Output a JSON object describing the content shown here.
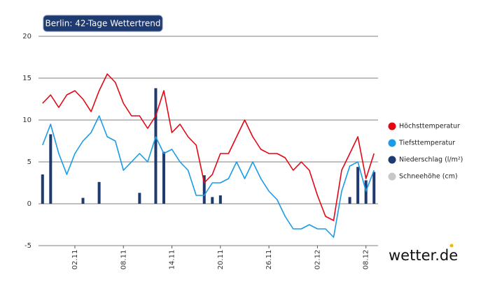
{
  "chart_data": {
    "type": "combo",
    "title": "Berlin: 42-Tage Wettertrend",
    "brand": "wetter.de",
    "categories": [
      null,
      null,
      null,
      null,
      "02.11",
      null,
      null,
      null,
      null,
      null,
      "08.11",
      null,
      null,
      null,
      null,
      null,
      "14.11",
      null,
      null,
      null,
      null,
      null,
      "20.11",
      null,
      null,
      null,
      null,
      null,
      "26.11",
      null,
      null,
      null,
      null,
      null,
      "02.12",
      null,
      null,
      null,
      null,
      null,
      "08.12",
      null
    ],
    "ylim": [
      -5,
      20
    ],
    "yticks": [
      -5,
      0,
      5,
      10,
      15,
      20
    ],
    "grid": true,
    "series": [
      {
        "name": "Höchsttemperatur",
        "type": "line",
        "color": "#e30613",
        "values": [
          12,
          13,
          11.5,
          13,
          13.5,
          12.5,
          11,
          13.5,
          15.5,
          14.5,
          12,
          10.5,
          10.5,
          9,
          10.5,
          13.5,
          8.5,
          9.5,
          8,
          7,
          2.5,
          3.5,
          6,
          6,
          8,
          10,
          8,
          6.5,
          6,
          6,
          5.5,
          4,
          5,
          4,
          1,
          -1.5,
          -2,
          4,
          6,
          8,
          3,
          6
        ]
      },
      {
        "name": "Tiefsttemperatur",
        "type": "line",
        "color": "#1a9be6",
        "values": [
          7,
          9.5,
          6,
          3.5,
          6,
          7.5,
          8.5,
          10.5,
          8,
          7.5,
          4,
          5,
          6,
          5,
          8,
          6,
          6.5,
          5,
          4,
          1,
          1,
          2.5,
          2.5,
          3,
          5,
          3,
          5,
          3,
          1.5,
          0.5,
          -1.5,
          -3,
          -3,
          -2.5,
          -3,
          -3,
          -4,
          1.5,
          4.5,
          5,
          1.5,
          4
        ]
      },
      {
        "name": "Niederschlag (l/m²)",
        "type": "bar",
        "color": "#1f3a6e",
        "values": [
          3.5,
          8.3,
          null,
          null,
          null,
          0.7,
          null,
          2.6,
          null,
          null,
          null,
          null,
          1.3,
          null,
          13.8,
          6.2,
          null,
          null,
          null,
          null,
          3.4,
          0.8,
          1,
          null,
          null,
          null,
          null,
          null,
          null,
          null,
          null,
          null,
          null,
          null,
          null,
          null,
          null,
          null,
          0.8,
          4.4,
          2.8,
          3.8
        ]
      },
      {
        "name": "Schneehöhe (cm)",
        "type": "bar",
        "color": "#c8c8c8",
        "values": [
          null,
          null,
          null,
          null,
          null,
          null,
          null,
          null,
          null,
          null,
          null,
          null,
          null,
          null,
          null,
          null,
          null,
          null,
          null,
          null,
          null,
          null,
          null,
          null,
          null,
          null,
          null,
          null,
          null,
          null,
          null,
          null,
          null,
          null,
          null,
          null,
          null,
          null,
          null,
          null,
          null,
          null
        ]
      }
    ]
  }
}
